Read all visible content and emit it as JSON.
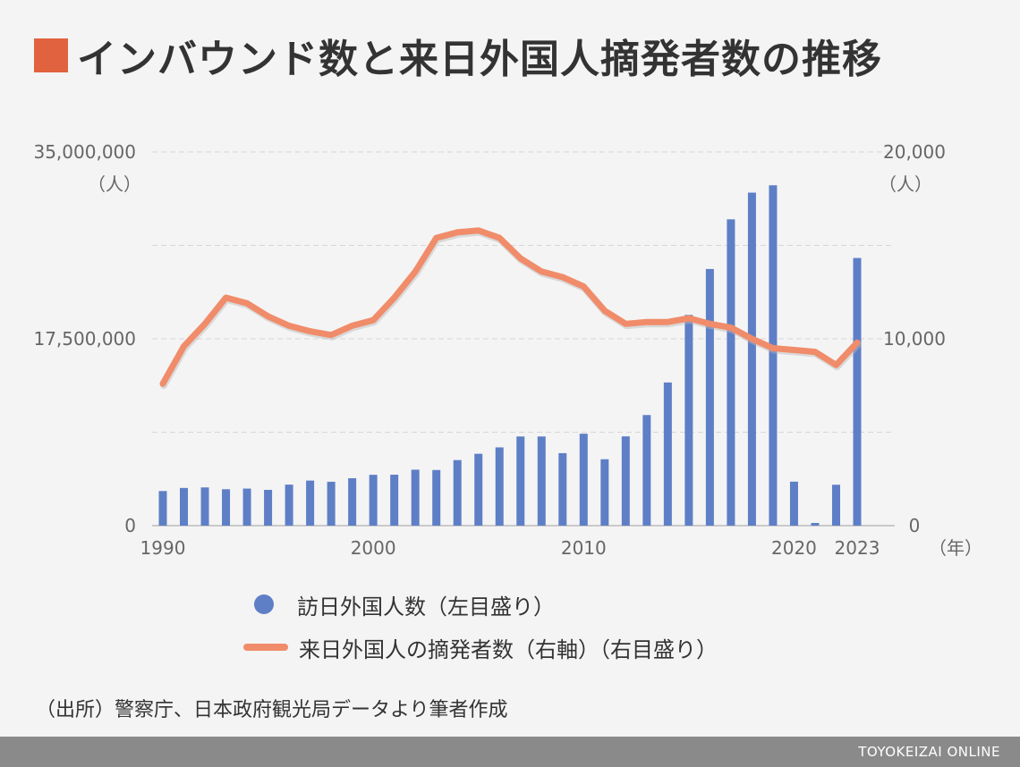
{
  "title": "インバウンド数と来日外国人摘発者数の推移",
  "legend": {
    "bars": "訪日外国人数（左目盛り）",
    "line": "来日外国人の摘発者数（右軸）（右目盛り）"
  },
  "source": "（出所）警察庁、日本政府観光局データより筆者作成",
  "footer": "TOYOKEIZAI ONLINE",
  "colors": {
    "bar": "#5e7fc6",
    "line": "#f08c6a",
    "title_square": "#e1623e"
  },
  "chart_data": {
    "type": "bar+line",
    "x": [
      1990,
      1991,
      1992,
      1993,
      1994,
      1995,
      1996,
      1997,
      1998,
      1999,
      2000,
      2001,
      2002,
      2003,
      2004,
      2005,
      2006,
      2007,
      2008,
      2009,
      2010,
      2011,
      2012,
      2013,
      2014,
      2015,
      2016,
      2017,
      2018,
      2019,
      2020,
      2021,
      2022,
      2023
    ],
    "series": [
      {
        "name": "訪日外国人数（左目盛り）",
        "axis": "left",
        "type": "bar",
        "values": [
          3240000,
          3530000,
          3580000,
          3410000,
          3470000,
          3350000,
          3840000,
          4220000,
          4110000,
          4440000,
          4760000,
          4770000,
          5240000,
          5210000,
          6140000,
          6730000,
          7330000,
          8350000,
          8350000,
          6790000,
          8610000,
          6220000,
          8360000,
          10360000,
          13410000,
          19740000,
          24040000,
          28690000,
          31190000,
          31880000,
          4120000,
          250000,
          3830000,
          25070000
        ]
      },
      {
        "name": "来日外国人の摘発者数（右軸）（右目盛り）",
        "axis": "right",
        "type": "line",
        "values": [
          7600,
          9600,
          10800,
          12200,
          11900,
          11200,
          10700,
          10400,
          10200,
          10700,
          11000,
          12200,
          13600,
          15400,
          15700,
          15800,
          15400,
          14300,
          13600,
          13300,
          12800,
          11500,
          10800,
          10900,
          10900,
          11100,
          10800,
          10600,
          10000,
          9500,
          9400,
          9300,
          8600,
          9800
        ]
      }
    ],
    "y_left": {
      "range": [
        0,
        35000000
      ],
      "ticks": [
        "0",
        "17,500,000",
        "35,000,000"
      ],
      "unit": "（人）"
    },
    "y_right": {
      "range": [
        0,
        20000
      ],
      "ticks": [
        "0",
        "10,000",
        "20,000"
      ],
      "unit": "（人）"
    },
    "x_ticks": [
      "1990",
      "2000",
      "2010",
      "2020",
      "2023"
    ],
    "x_unit": "（年）",
    "grid": true,
    "legend_position": "bottom"
  }
}
